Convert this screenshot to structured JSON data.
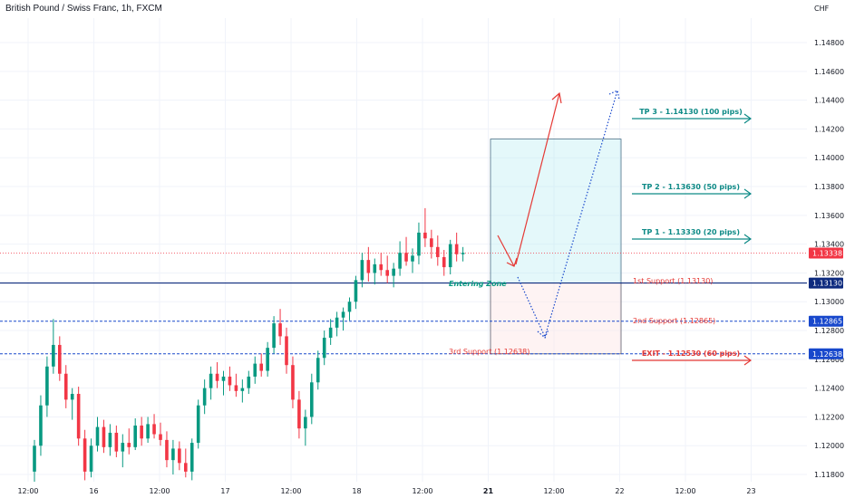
{
  "header": {
    "title": "British Pound / Swiss Franc, 1h, FXCM"
  },
  "colors": {
    "up": "#089981",
    "down": "#f23645",
    "navy": "#0d2a7e",
    "blue": "#1848cc",
    "teal": "#0e8a86",
    "red": "#e53935",
    "grid": "#f0f3fa"
  },
  "chart_data": {
    "type": "candlestick",
    "title": "British Pound / Swiss Franc, 1h, FXCM",
    "currency": "CHF",
    "ylim": [
      1.1175,
      1.1497
    ],
    "y_ticks": [
      "1.11800",
      "1.12000",
      "1.12200",
      "1.12400",
      "1.12600",
      "1.12800",
      "1.13000",
      "1.13200",
      "1.13400",
      "1.13600",
      "1.13800",
      "1.14000",
      "1.14200",
      "1.14400",
      "1.14600",
      "1.14800"
    ],
    "x_ticks": [
      "12:00",
      "16",
      "12:00",
      "17",
      "12:00",
      "18",
      "12:00",
      "21",
      "12:00",
      "22",
      "12:00",
      "23"
    ],
    "price_badges": [
      {
        "label": "1.13338",
        "value": 1.13338,
        "color": "#f23645"
      },
      {
        "label": "1.13130",
        "value": 1.1313,
        "color": "#0d2a7e"
      },
      {
        "label": "1.12865",
        "value": 1.12865,
        "color": "#1848cc"
      },
      {
        "label": "1.12638",
        "value": 1.12638,
        "color": "#1848cc"
      }
    ],
    "levels": [
      {
        "value": 1.1313,
        "style": "solid",
        "color": "#0d2a7e"
      },
      {
        "value": 1.12865,
        "style": "dashed",
        "color": "#1848cc"
      },
      {
        "value": 1.12638,
        "style": "dashed",
        "color": "#1848cc"
      },
      {
        "value": 1.13338,
        "style": "dotted",
        "color": "#f23645"
      }
    ],
    "target_zone": {
      "top": 1.1413,
      "bottom": 1.1313
    },
    "stop_zone": {
      "top": 1.1313,
      "bottom": 1.12638
    },
    "annotations": {
      "tp3": "TP 3 - 1.14130 (100 pips)",
      "tp2": "TP 2 - 1.13630 (50 pips)",
      "tp1": "TP 1 - 1.13330 (20 pips)",
      "support1": "1st Support  (1.13130)",
      "support2": "2nd Support  (1.12865)",
      "support3": "3rd Support  (1.12638)",
      "exit": "EXIT - 1.12530 (60 pips)",
      "entering": "Entering Zone"
    },
    "candles": [
      [
        1.1182,
        1.1204,
        1.1175,
        1.12
      ],
      [
        1.12,
        1.1235,
        1.1193,
        1.1228
      ],
      [
        1.1228,
        1.1262,
        1.122,
        1.1255
      ],
      [
        1.1255,
        1.1288,
        1.125,
        1.127
      ],
      [
        1.127,
        1.1276,
        1.1245,
        1.125
      ],
      [
        1.125,
        1.1256,
        1.1226,
        1.1232
      ],
      [
        1.1232,
        1.124,
        1.1218,
        1.1236
      ],
      [
        1.1236,
        1.1241,
        1.12,
        1.1205
      ],
      [
        1.1205,
        1.1211,
        1.1176,
        1.1182
      ],
      [
        1.1182,
        1.1205,
        1.1178,
        1.12
      ],
      [
        1.12,
        1.122,
        1.1196,
        1.1213
      ],
      [
        1.1213,
        1.1218,
        1.1195,
        1.1199
      ],
      [
        1.1199,
        1.1215,
        1.1193,
        1.1209
      ],
      [
        1.1209,
        1.1214,
        1.1192,
        1.1196
      ],
      [
        1.1196,
        1.1208,
        1.1185,
        1.1202
      ],
      [
        1.1202,
        1.1212,
        1.1194,
        1.1199
      ],
      [
        1.1199,
        1.1219,
        1.1197,
        1.1214
      ],
      [
        1.1214,
        1.122,
        1.12,
        1.1205
      ],
      [
        1.1205,
        1.122,
        1.1202,
        1.1215
      ],
      [
        1.1215,
        1.1222,
        1.1205,
        1.1208
      ],
      [
        1.1208,
        1.1216,
        1.12,
        1.1204
      ],
      [
        1.1204,
        1.121,
        1.1185,
        1.119
      ],
      [
        1.119,
        1.1204,
        1.118,
        1.1198
      ],
      [
        1.1198,
        1.1203,
        1.1183,
        1.1188
      ],
      [
        1.1188,
        1.1198,
        1.1178,
        1.1182
      ],
      [
        1.1182,
        1.1205,
        1.1176,
        1.1202
      ],
      [
        1.1202,
        1.1232,
        1.1198,
        1.1228
      ],
      [
        1.1228,
        1.1246,
        1.1222,
        1.124
      ],
      [
        1.124,
        1.1255,
        1.1232,
        1.125
      ],
      [
        1.125,
        1.1258,
        1.124,
        1.1245
      ],
      [
        1.1245,
        1.1252,
        1.1235,
        1.1248
      ],
      [
        1.1248,
        1.1255,
        1.1238,
        1.1242
      ],
      [
        1.1242,
        1.125,
        1.1234,
        1.1238
      ],
      [
        1.1238,
        1.1246,
        1.123,
        1.124
      ],
      [
        1.124,
        1.1252,
        1.1236,
        1.1248
      ],
      [
        1.1248,
        1.1262,
        1.1243,
        1.1257
      ],
      [
        1.1257,
        1.1264,
        1.1248,
        1.1252
      ],
      [
        1.1252,
        1.1272,
        1.1248,
        1.1268
      ],
      [
        1.1268,
        1.129,
        1.1264,
        1.1285
      ],
      [
        1.1285,
        1.1295,
        1.127,
        1.1276
      ],
      [
        1.1276,
        1.1282,
        1.125,
        1.1256
      ],
      [
        1.1256,
        1.1262,
        1.1226,
        1.1232
      ],
      [
        1.1232,
        1.1238,
        1.1205,
        1.1212
      ],
      [
        1.1212,
        1.1225,
        1.12,
        1.122
      ],
      [
        1.122,
        1.125,
        1.1215,
        1.1244
      ],
      [
        1.1244,
        1.1266,
        1.1239,
        1.1261
      ],
      [
        1.1261,
        1.128,
        1.1256,
        1.1275
      ],
      [
        1.1275,
        1.1288,
        1.127,
        1.1282
      ],
      [
        1.1282,
        1.1293,
        1.1276,
        1.1289
      ],
      [
        1.1289,
        1.1296,
        1.128,
        1.1293
      ],
      [
        1.1293,
        1.1303,
        1.1287,
        1.13
      ],
      [
        1.13,
        1.1318,
        1.1295,
        1.1315
      ],
      [
        1.1315,
        1.1334,
        1.131,
        1.1329
      ],
      [
        1.1329,
        1.1338,
        1.1314,
        1.132
      ],
      [
        1.132,
        1.133,
        1.1312,
        1.1326
      ],
      [
        1.1326,
        1.1334,
        1.1318,
        1.1322
      ],
      [
        1.1322,
        1.1332,
        1.1313,
        1.1318
      ],
      [
        1.1318,
        1.1327,
        1.131,
        1.1323
      ],
      [
        1.1323,
        1.1342,
        1.1318,
        1.1334
      ],
      [
        1.1334,
        1.1345,
        1.1325,
        1.1328
      ],
      [
        1.1328,
        1.1337,
        1.132,
        1.1332
      ],
      [
        1.1332,
        1.1355,
        1.1326,
        1.1348
      ],
      [
        1.1348,
        1.1365,
        1.1338,
        1.1344
      ],
      [
        1.1344,
        1.135,
        1.133,
        1.1338
      ],
      [
        1.1338,
        1.1346,
        1.1325,
        1.1331
      ],
      [
        1.1331,
        1.1336,
        1.1318,
        1.1324
      ],
      [
        1.1324,
        1.1343,
        1.1319,
        1.134
      ],
      [
        1.134,
        1.1348,
        1.1328,
        1.1333
      ],
      [
        1.1333,
        1.1338,
        1.1328,
        1.1334
      ]
    ]
  }
}
